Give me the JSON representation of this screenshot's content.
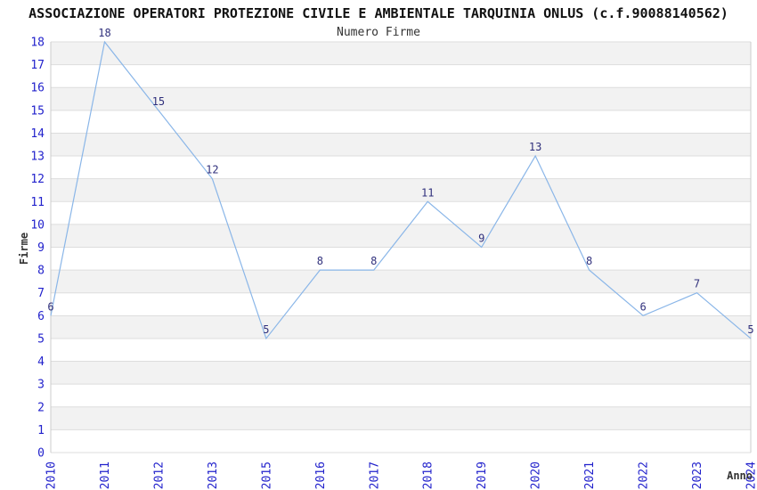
{
  "header": {
    "title": "ASSOCIAZIONE OPERATORI PROTEZIONE CIVILE E AMBIENTALE TARQUINIA ONLUS (c.f.90088140562)",
    "subtitle": "Numero Firme"
  },
  "chart_data": {
    "type": "line",
    "title": "ASSOCIAZIONE OPERATORI PROTEZIONE CIVILE E AMBIENTALE TARQUINIA ONLUS (c.f.90088140562)",
    "subtitle": "Numero Firme",
    "xlabel": "Anno",
    "ylabel": "Firme",
    "categories": [
      "2010",
      "2011",
      "2012",
      "2013",
      "2015",
      "2016",
      "2017",
      "2018",
      "2019",
      "2020",
      "2021",
      "2022",
      "2023",
      "2024"
    ],
    "values": [
      6,
      18,
      15,
      12,
      5,
      8,
      8,
      11,
      9,
      13,
      8,
      6,
      7,
      5
    ],
    "ylim": [
      0,
      18
    ],
    "ytick_step": 1,
    "yticks": [
      0,
      1,
      2,
      3,
      4,
      5,
      6,
      7,
      8,
      9,
      10,
      11,
      12,
      13,
      14,
      15,
      16,
      17,
      18
    ],
    "grid": "horizontal-integer-lines-with-alternating-bands",
    "legend": "none",
    "point_labels_visible": true,
    "colors": {
      "line": "#8ab6e8",
      "tick_label": "#2222cc",
      "point_label": "#30307c",
      "band": "#f2f2f2",
      "gridline": "#dddddd",
      "plot_border": "#cccccc",
      "axis_title": "#333333",
      "title": "#111111",
      "background": "#ffffff"
    }
  }
}
